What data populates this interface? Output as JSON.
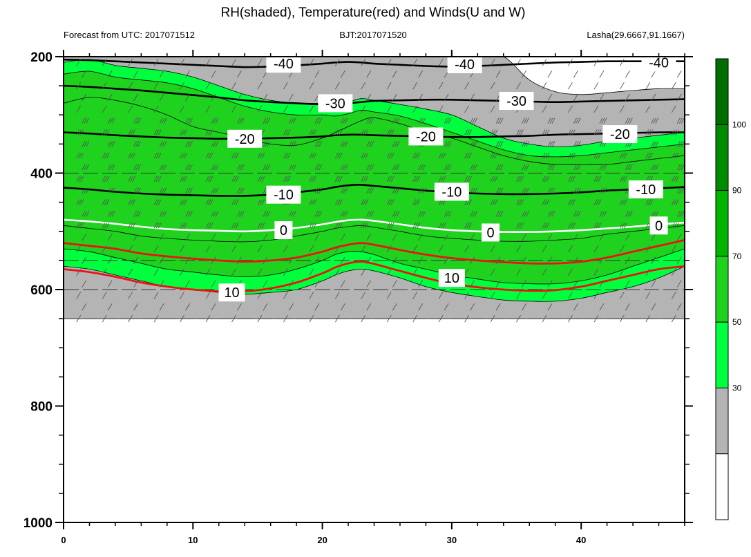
{
  "chart_data": {
    "type": "contour",
    "title": "RH(shaded), Temperature(red) and Winds(U and W)",
    "left_subtitle": "Forecast from UTC: 2017071512",
    "center_subtitle": "BJT:2017071520",
    "right_subtitle": "Lasha(29.6667,91.1667)",
    "xlabel": "",
    "ylabel": "",
    "x_range": [
      0,
      48
    ],
    "y_range": [
      1000,
      200
    ],
    "x_ticks": [
      0,
      10,
      20,
      30,
      40
    ],
    "y_ticks": [
      200,
      400,
      600,
      800,
      1000
    ],
    "colorbar": {
      "levels": [
        30,
        50,
        70,
        90,
        100
      ],
      "colors": [
        "#ffffff",
        "#b4b4b4",
        "#00ff3c",
        "#1ed21e",
        "#00b400",
        "#008c00",
        "#006e00"
      ]
    },
    "rh_regions": {
      "x": [
        0,
        2,
        4,
        6,
        8,
        10,
        12,
        14,
        16,
        18,
        20,
        21,
        22,
        23,
        24,
        26,
        28,
        30,
        32,
        34,
        36,
        38,
        40,
        42,
        44,
        46,
        48
      ],
      "b30": [
        650,
        650,
        650,
        650,
        650,
        650,
        650,
        650,
        650,
        650,
        650,
        650,
        650,
        650,
        650,
        650,
        650,
        650,
        650,
        650,
        650,
        650,
        650,
        650,
        650,
        650,
        650
      ],
      "t30": [
        200,
        200,
        200,
        200,
        200,
        200,
        200,
        200,
        200,
        200,
        200,
        200,
        200,
        200,
        200,
        200,
        200,
        200,
        200,
        200,
        240,
        260,
        265,
        262,
        258,
        255,
        255
      ],
      "b50": [
        560,
        565,
        575,
        585,
        595,
        600,
        605,
        608,
        605,
        600,
        585,
        575,
        568,
        565,
        568,
        580,
        595,
        605,
        612,
        618,
        620,
        620,
        615,
        605,
        595,
        580,
        560
      ],
      "t50": [
        210,
        205,
        215,
        220,
        225,
        235,
        250,
        265,
        275,
        280,
        280,
        282,
        278,
        272,
        275,
        282,
        290,
        300,
        320,
        340,
        350,
        355,
        352,
        345,
        340,
        335,
        330
      ],
      "b70": [
        530,
        535,
        545,
        555,
        565,
        570,
        575,
        578,
        575,
        565,
        550,
        540,
        535,
        535,
        540,
        555,
        565,
        575,
        582,
        588,
        590,
        590,
        585,
        575,
        560,
        545,
        530
      ],
      "t70": [
        230,
        225,
        235,
        240,
        245,
        255,
        270,
        285,
        295,
        300,
        300,
        302,
        298,
        292,
        295,
        302,
        315,
        330,
        345,
        360,
        370,
        372,
        370,
        365,
        360,
        355,
        350
      ],
      "b90": [
        490,
        495,
        500,
        508,
        512,
        515,
        517,
        518,
        515,
        508,
        500,
        495,
        492,
        490,
        493,
        500,
        508,
        512,
        515,
        517,
        517,
        515,
        512,
        505,
        500,
        495,
        490
      ],
      "t90": [
        280,
        270,
        275,
        285,
        300,
        320,
        330,
        340,
        350,
        352,
        340,
        330,
        320,
        310,
        305,
        315,
        330,
        340,
        355,
        370,
        380,
        385,
        385,
        385,
        380,
        375,
        370
      ]
    },
    "temperature_black": [
      {
        "label": "-40",
        "y": [
          205,
          206,
          208,
          210,
          212,
          214,
          216,
          218,
          217,
          215,
          212,
          210,
          209,
          210,
          212,
          214,
          216,
          217,
          216,
          214,
          212,
          210,
          209,
          208,
          208,
          208,
          208
        ]
      },
      {
        "label": "-30",
        "y": [
          250,
          252,
          255,
          258,
          262,
          266,
          270,
          275,
          278,
          280,
          282,
          282,
          280,
          278,
          276,
          275,
          274,
          274,
          275,
          276,
          277,
          278,
          277,
          276,
          275,
          274,
          273
        ]
      },
      {
        "label": "-20",
        "y": [
          330,
          332,
          335,
          337,
          339,
          340,
          341,
          341,
          340,
          339,
          337,
          335,
          334,
          334,
          335,
          336,
          337,
          338,
          338,
          337,
          336,
          334,
          333,
          332,
          331,
          330,
          330
        ]
      },
      {
        "label": "-10",
        "y": [
          425,
          428,
          432,
          435,
          437,
          438,
          439,
          439,
          437,
          433,
          428,
          424,
          421,
          420,
          422,
          426,
          430,
          433,
          435,
          436,
          436,
          435,
          433,
          430,
          428,
          426,
          424
        ]
      }
    ],
    "temperature_zero": {
      "label": "0",
      "y": [
        480,
        483,
        487,
        492,
        496,
        498,
        499,
        500,
        498,
        494,
        488,
        484,
        481,
        480,
        482,
        488,
        494,
        498,
        500,
        501,
        501,
        500,
        498,
        495,
        492,
        488,
        485
      ]
    },
    "temperature_red": [
      {
        "label": "",
        "y": [
          520,
          525,
          530,
          538,
          543,
          547,
          550,
          552,
          550,
          545,
          535,
          528,
          523,
          520,
          523,
          532,
          540,
          546,
          550,
          553,
          555,
          555,
          552,
          545,
          535,
          525,
          515
        ]
      },
      {
        "label": "10",
        "y": [
          565,
          570,
          578,
          588,
          595,
          600,
          603,
          603,
          598,
          588,
          572,
          562,
          555,
          552,
          556,
          568,
          580,
          590,
          596,
          600,
          602,
          601,
          595,
          585,
          575,
          565,
          560
        ]
      }
    ],
    "labels": {
      "black": [
        {
          "text": "-40",
          "x": 17,
          "y": 212
        },
        {
          "text": "-40",
          "x": 31,
          "y": 213
        },
        {
          "text": "-40",
          "x": 46,
          "y": 210
        },
        {
          "text": "-30",
          "x": 21,
          "y": 280
        },
        {
          "text": "-30",
          "x": 35,
          "y": 276
        },
        {
          "text": "-20",
          "x": 14,
          "y": 341
        },
        {
          "text": "-20",
          "x": 28,
          "y": 337
        },
        {
          "text": "-20",
          "x": 43,
          "y": 333
        },
        {
          "text": "-10",
          "x": 17,
          "y": 437
        },
        {
          "text": "-10",
          "x": 30,
          "y": 432
        },
        {
          "text": "-10",
          "x": 45,
          "y": 428
        }
      ],
      "zero": [
        {
          "text": "0",
          "x": 17,
          "y": 498
        },
        {
          "text": "0",
          "x": 33,
          "y": 502
        },
        {
          "text": "0",
          "x": 46,
          "y": 490
        }
      ],
      "red": [
        {
          "text": "10",
          "x": 13,
          "y": 605
        },
        {
          "text": "10",
          "x": 30,
          "y": 580
        }
      ]
    }
  }
}
